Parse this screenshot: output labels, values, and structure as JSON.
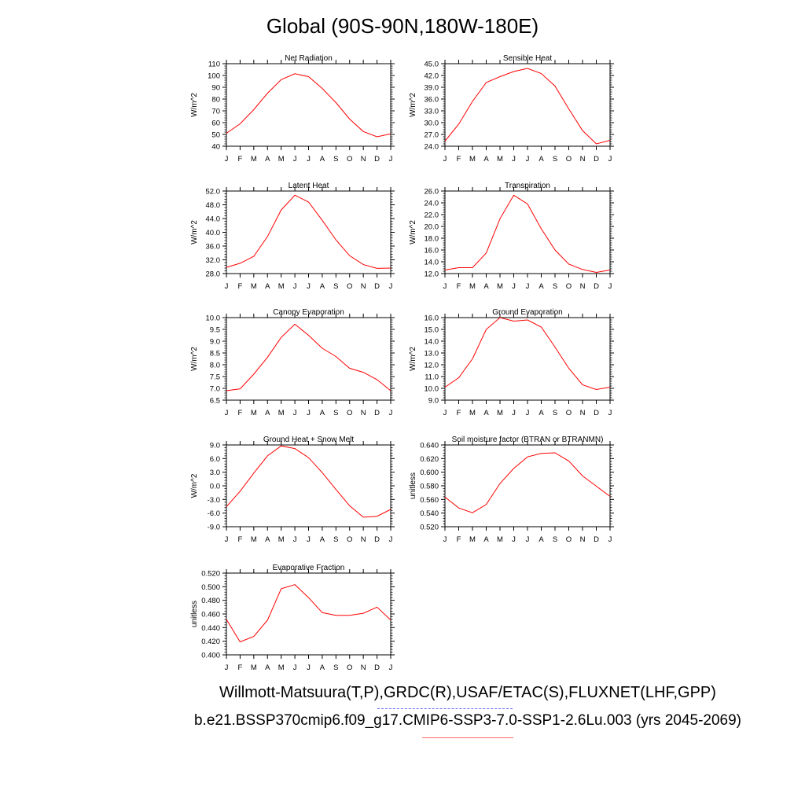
{
  "title": "Global (90S-90N,180W-180E)",
  "footer": {
    "line1": "Willmott-Matsuura(T,P),GRDC(R),USAF/ETAC(S),FLUXNET(LHF,GPP)",
    "line2": "b.e21.BSSP370cmip6.f09_g17.CMIP6-SSP3-7.0-SSP1-2.6Lu.003 (yrs 2045-2069)"
  },
  "colors": {
    "series_line": "#ff0000",
    "axis": "#000000",
    "underline_blue": "#6666ff",
    "underline_red": "#ff6666"
  },
  "chart_data": [
    {
      "type": "line",
      "title": "Net Radiation",
      "ylabel": "W/m^2",
      "x": [
        "J",
        "F",
        "M",
        "A",
        "M",
        "J",
        "J",
        "A",
        "S",
        "O",
        "N",
        "D",
        "J"
      ],
      "values": [
        51,
        59,
        71,
        85,
        96.5,
        101.5,
        99,
        89,
        77,
        63,
        52.5,
        48,
        50.5
      ],
      "ylim": [
        40,
        110
      ],
      "yticks": [
        "40",
        "50",
        "60",
        "70",
        "80",
        "90",
        "100",
        "110"
      ]
    },
    {
      "type": "line",
      "title": "Sensible Heat",
      "ylabel": "W/m^2",
      "x": [
        "J",
        "F",
        "M",
        "A",
        "M",
        "J",
        "J",
        "A",
        "S",
        "O",
        "N",
        "D",
        "J"
      ],
      "values": [
        25.3,
        29.6,
        35.4,
        40.2,
        41.7,
        43.0,
        43.8,
        42.5,
        39.3,
        33.5,
        28.0,
        24.6,
        25.5
      ],
      "ylim": [
        24.0,
        45.0
      ],
      "yticks": [
        "24.0",
        "27.0",
        "30.0",
        "33.0",
        "36.0",
        "39.0",
        "42.0",
        "45.0"
      ]
    },
    {
      "type": "line",
      "title": "Latent Heat",
      "ylabel": "W/m^2",
      "x": [
        "J",
        "F",
        "M",
        "A",
        "M",
        "J",
        "J",
        "A",
        "S",
        "O",
        "N",
        "D",
        "J"
      ],
      "values": [
        29.8,
        31.0,
        33.0,
        38.8,
        46.5,
        50.8,
        48.8,
        43.5,
        37.8,
        33.2,
        30.6,
        29.5,
        29.6
      ],
      "ylim": [
        28.0,
        52.0
      ],
      "yticks": [
        "28.0",
        "32.0",
        "36.0",
        "40.0",
        "44.0",
        "48.0",
        "52.0"
      ]
    },
    {
      "type": "line",
      "title": "Transpiration",
      "ylabel": "W/m^2",
      "x": [
        "J",
        "F",
        "M",
        "A",
        "M",
        "J",
        "J",
        "A",
        "S",
        "O",
        "N",
        "D",
        "J"
      ],
      "values": [
        12.6,
        13.0,
        13.0,
        15.5,
        21.3,
        25.3,
        23.8,
        19.6,
        16.0,
        13.6,
        12.7,
        12.2,
        12.6
      ],
      "ylim": [
        12.0,
        26.0
      ],
      "yticks": [
        "12.0",
        "14.0",
        "16.0",
        "18.0",
        "20.0",
        "22.0",
        "24.0",
        "26.0"
      ]
    },
    {
      "type": "line",
      "title": "Canopy Evaporation",
      "ylabel": "W/m^2",
      "x": [
        "J",
        "F",
        "M",
        "A",
        "M",
        "J",
        "J",
        "A",
        "S",
        "O",
        "N",
        "D",
        "J"
      ],
      "values": [
        6.9,
        6.98,
        7.6,
        8.32,
        9.16,
        9.72,
        9.25,
        8.7,
        8.35,
        7.85,
        7.68,
        7.37,
        6.9
      ],
      "ylim": [
        6.5,
        10.0
      ],
      "yticks": [
        "6.5",
        "7.0",
        "7.5",
        "8.0",
        "8.5",
        "9.0",
        "9.5",
        "10.0"
      ]
    },
    {
      "type": "line",
      "title": "Ground Evaporation",
      "ylabel": "W/m^2",
      "x": [
        "J",
        "F",
        "M",
        "A",
        "M",
        "J",
        "J",
        "A",
        "S",
        "O",
        "N",
        "D",
        "J"
      ],
      "values": [
        10.1,
        10.9,
        12.5,
        15.0,
        16.0,
        15.7,
        15.8,
        15.2,
        13.5,
        11.7,
        10.3,
        9.9,
        10.1
      ],
      "ylim": [
        9.0,
        16.0
      ],
      "yticks": [
        "9.0",
        "10.0",
        "11.0",
        "12.0",
        "13.0",
        "14.0",
        "15.0",
        "16.0"
      ]
    },
    {
      "type": "line",
      "title": "Ground Heat + Snow Melt",
      "ylabel": "W/m^2",
      "x": [
        "J",
        "F",
        "M",
        "A",
        "M",
        "J",
        "J",
        "A",
        "S",
        "O",
        "N",
        "D",
        "J"
      ],
      "values": [
        -4.6,
        -1.2,
        2.8,
        6.6,
        8.8,
        8.2,
        6.2,
        2.9,
        -0.8,
        -4.4,
        -6.9,
        -6.7,
        -5.2
      ],
      "ylim": [
        -9.0,
        9.0
      ],
      "yticks": [
        "-9.0",
        "-6.0",
        "-3.0",
        "0.0",
        "3.0",
        "6.0",
        "9.0"
      ]
    },
    {
      "type": "line",
      "title": "Soil moisture factor (BTRAN or BTRANMN)",
      "ylabel": "unitless",
      "x": [
        "J",
        "F",
        "M",
        "A",
        "M",
        "J",
        "J",
        "A",
        "S",
        "O",
        "N",
        "D",
        "J"
      ],
      "values": [
        0.5635,
        0.5475,
        0.5405,
        0.5525,
        0.5835,
        0.6055,
        0.6225,
        0.6275,
        0.6285,
        0.6165,
        0.5945,
        0.5795,
        0.5645
      ],
      "ylim": [
        0.52,
        0.64
      ],
      "yticks": [
        "0.520",
        "0.540",
        "0.560",
        "0.580",
        "0.600",
        "0.620",
        "0.640"
      ]
    },
    {
      "type": "line",
      "title": "Evaporative Fraction",
      "ylabel": "unitless",
      "x": [
        "J",
        "F",
        "M",
        "A",
        "M",
        "J",
        "J",
        "A",
        "S",
        "O",
        "N",
        "D",
        "J"
      ],
      "values": [
        0.452,
        0.419,
        0.427,
        0.451,
        0.497,
        0.503,
        0.484,
        0.462,
        0.458,
        0.458,
        0.461,
        0.47,
        0.451
      ],
      "ylim": [
        0.4,
        0.52
      ],
      "yticks": [
        "0.400",
        "0.420",
        "0.440",
        "0.460",
        "0.480",
        "0.500",
        "0.520"
      ]
    }
  ]
}
